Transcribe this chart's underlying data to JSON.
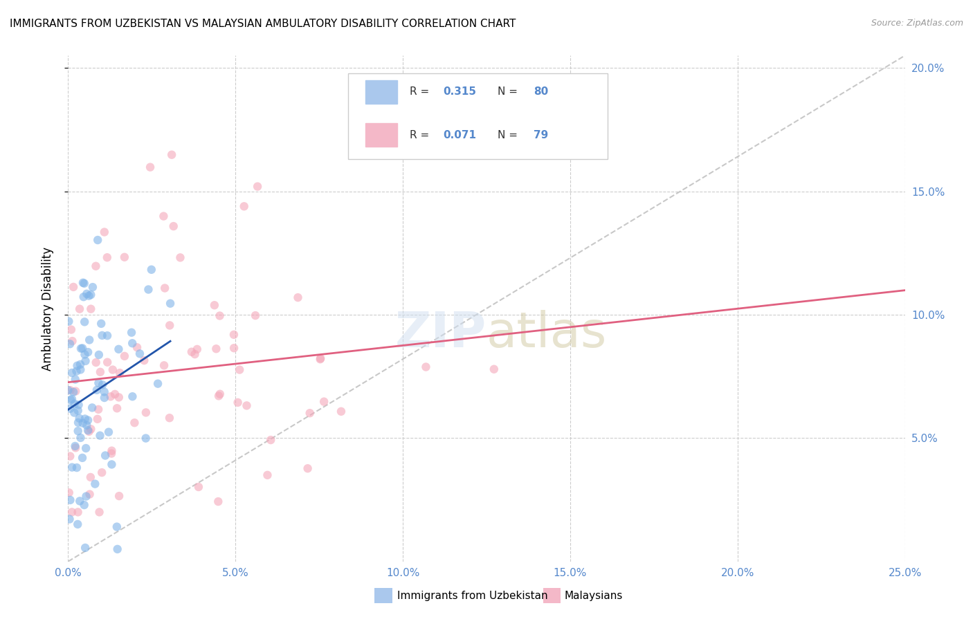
{
  "title": "IMMIGRANTS FROM UZBEKISTAN VS MALAYSIAN AMBULATORY DISABILITY CORRELATION CHART",
  "source": "Source: ZipAtlas.com",
  "ylabel": "Ambulatory Disability",
  "x_min": 0.0,
  "x_max": 0.25,
  "y_min": 0.0,
  "y_max": 0.205,
  "x_ticks": [
    0.0,
    0.05,
    0.1,
    0.15,
    0.2,
    0.25
  ],
  "x_tick_labels": [
    "0.0%",
    "5.0%",
    "10.0%",
    "15.0%",
    "20.0%",
    "25.0%"
  ],
  "y_ticks": [
    0.05,
    0.1,
    0.15,
    0.2
  ],
  "y_tick_labels": [
    "5.0%",
    "10.0%",
    "15.0%",
    "20.0%"
  ],
  "series1_color": "#7fb3e8",
  "series1_legend_color": "#aac8ed",
  "series2_color": "#f4a7b9",
  "series2_legend_color": "#f4b8c8",
  "trendline1_color": "#2255aa",
  "trendline2_color": "#e06080",
  "ref_line_color": "#bbbbbb",
  "background_color": "#ffffff",
  "grid_color": "#cccccc",
  "tick_color": "#5588cc",
  "R1": 0.315,
  "N1": 80,
  "R2": 0.071,
  "N2": 79,
  "legend_R1": "0.315",
  "legend_N1": "80",
  "legend_R2": "0.071",
  "legend_N2": "79",
  "label1": "Immigrants from Uzbekistan",
  "label2": "Malaysians"
}
